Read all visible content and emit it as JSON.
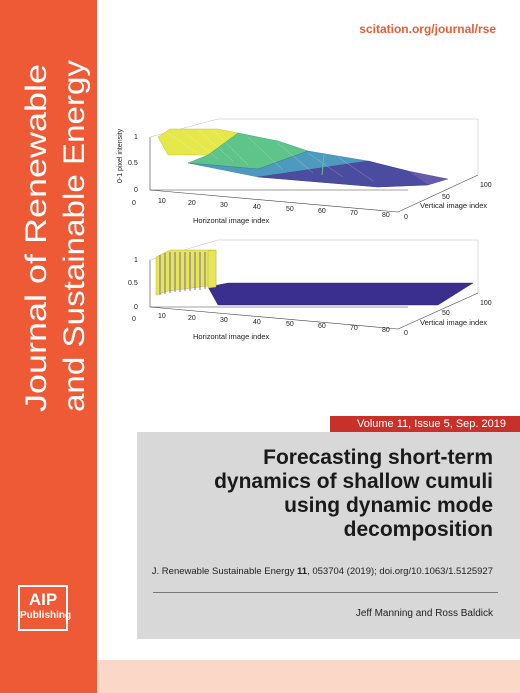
{
  "journal": {
    "title_line1": "Journal of Renewable",
    "title_line2": "and Sustainable Energy",
    "url": "scitation.org/journal/rse",
    "publisher_logo": {
      "line1": "AIP",
      "line2": "Publishing"
    }
  },
  "figure": {
    "top_plot": {
      "zlabel": "0-1 pixel intensity",
      "xlabel": "Horizontal image index",
      "ylabel": "Vertical image index",
      "x_ticks": [
        "0",
        "10",
        "20",
        "30",
        "40",
        "50",
        "60",
        "70",
        "80"
      ],
      "y_ticks": [
        "0",
        "50",
        "100"
      ],
      "z_ticks": [
        "0",
        "0.5",
        "1"
      ]
    },
    "bottom_plot": {
      "xlabel": "Horizontal image index",
      "ylabel": "Vertical image index",
      "x_ticks": [
        "0",
        "10",
        "20",
        "30",
        "40",
        "50",
        "60",
        "70",
        "80"
      ],
      "y_ticks": [
        "0",
        "50",
        "100"
      ],
      "z_ticks": [
        "0",
        "0.5",
        "1"
      ]
    }
  },
  "issue": {
    "label": "Volume 11, Issue 5, Sep. 2019"
  },
  "article": {
    "title": "Forecasting short-term dynamics of shallow cumuli using dynamic mode decomposition",
    "citation_prefix": "J. Renewable Sustainable Energy ",
    "citation_volume": "11",
    "citation_rest": ", 053704 (2019); doi.org/10.1063/1.5125927",
    "authors": "Jeff Manning and Ross Baldick"
  },
  "colors": {
    "accent": "#ee5a36",
    "issue_bar": "#c8302a",
    "grey_box": "#d8d8d8",
    "strip": "#fbd7c8"
  }
}
